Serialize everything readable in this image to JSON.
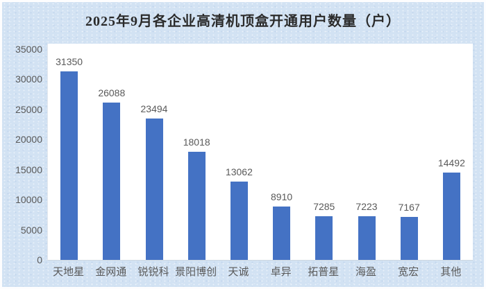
{
  "title": "2025年9月各企业高清机顶盒开通用户数量（户）",
  "colors": {
    "bar": "#4472C4",
    "background": "#d2e2f3",
    "plot_background": "#ffffff",
    "label_text": "#595959",
    "title_text": "#2b2b2b",
    "axis_line": "#ccd6e0"
  },
  "chart_data": {
    "type": "bar",
    "title": "2025年9月各企业高清机顶盒开通用户数量（户）",
    "categories": [
      "天地星",
      "金网通",
      "锐锐科",
      "景阳博创",
      "天诚",
      "卓异",
      "拓普星",
      "海盈",
      "宽宏",
      "其他"
    ],
    "values": [
      31350,
      26088,
      23494,
      18018,
      13062,
      8910,
      7285,
      7223,
      7167,
      14492
    ],
    "data_labels": [
      "31350",
      "26088",
      "23494",
      "18018",
      "13062",
      "8910",
      "7285",
      "7223",
      "7167",
      "14492"
    ],
    "xlabel": "",
    "ylabel": "",
    "ylim": [
      0,
      35000
    ],
    "yticks": [
      0,
      5000,
      10000,
      15000,
      20000,
      25000,
      30000,
      35000
    ],
    "grid": false,
    "legend": "none",
    "data_labels_visible": true
  }
}
